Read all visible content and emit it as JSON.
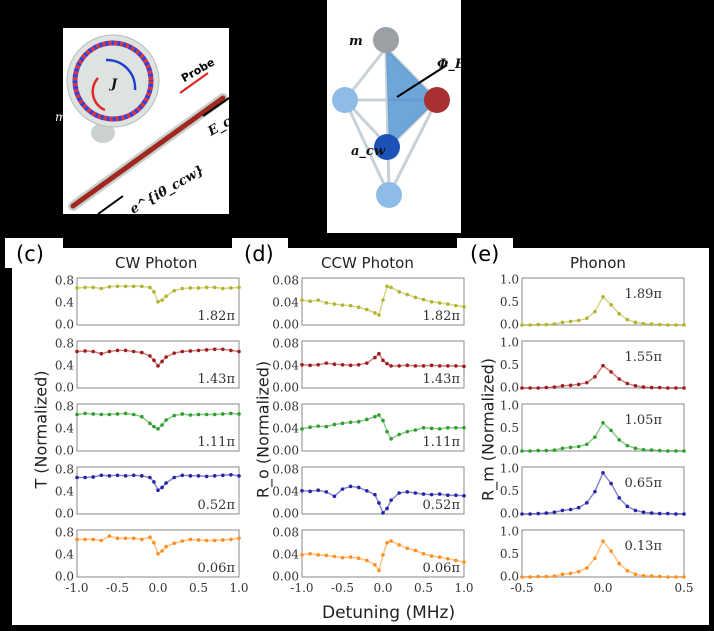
{
  "diagram_a": {
    "probe_label": "Probe",
    "j_label": "J",
    "ecw_label": "E_cw",
    "phase_label": "e^{iθ_ccw}",
    "partial_label": "m"
  },
  "diagram_b": {
    "m_label": "m",
    "phi_label": "Φ_B",
    "acw_label": "a_cw",
    "partial_label": "m"
  },
  "colors": {
    "yellow": "#b3b32c",
    "red": "#a01c1c",
    "green": "#2e9e2e",
    "blue": "#2424a6",
    "orange": "#ff8f1f"
  },
  "chart_data": [
    {
      "type": "line",
      "panel_label": "(c)",
      "title": "CW Photon",
      "ylabel": "T (Normalized)",
      "xlabel": "",
      "xlim": [
        -1.0,
        1.0
      ],
      "ylim": [
        0.0,
        0.85
      ],
      "xticks": [
        "-1.0",
        "-0.5",
        "0.0",
        "0.5",
        "1.0"
      ],
      "yticks": [
        "0.0",
        "0.4",
        "0.8"
      ],
      "x": [
        -1,
        -0.9,
        -0.8,
        -0.7,
        -0.6,
        -0.5,
        -0.4,
        -0.3,
        -0.2,
        -0.1,
        -0.05,
        0,
        0.05,
        0.1,
        0.2,
        0.3,
        0.4,
        0.5,
        0.6,
        0.7,
        0.8,
        0.9,
        1
      ],
      "series": [
        {
          "annotation": "1.82π",
          "color": "yellow",
          "values": [
            0.67,
            0.68,
            0.68,
            0.66,
            0.69,
            0.7,
            0.7,
            0.7,
            0.7,
            0.68,
            0.6,
            0.42,
            0.45,
            0.52,
            0.62,
            0.66,
            0.67,
            0.67,
            0.68,
            0.68,
            0.66,
            0.67,
            0.68
          ]
        },
        {
          "annotation": "1.43π",
          "color": "red",
          "values": [
            0.66,
            0.67,
            0.66,
            0.62,
            0.66,
            0.68,
            0.68,
            0.66,
            0.64,
            0.58,
            0.5,
            0.4,
            0.48,
            0.56,
            0.63,
            0.66,
            0.67,
            0.68,
            0.69,
            0.7,
            0.7,
            0.68,
            0.66
          ]
        },
        {
          "annotation": "1.11π",
          "color": "green",
          "values": [
            0.66,
            0.68,
            0.67,
            0.66,
            0.66,
            0.67,
            0.68,
            0.66,
            0.62,
            0.5,
            0.44,
            0.4,
            0.47,
            0.56,
            0.64,
            0.67,
            0.65,
            0.66,
            0.66,
            0.66,
            0.67,
            0.68,
            0.67
          ]
        },
        {
          "annotation": "0.52π",
          "color": "blue",
          "values": [
            0.66,
            0.66,
            0.67,
            0.7,
            0.69,
            0.7,
            0.69,
            0.7,
            0.69,
            0.66,
            0.58,
            0.43,
            0.48,
            0.56,
            0.66,
            0.7,
            0.69,
            0.69,
            0.68,
            0.69,
            0.7,
            0.71,
            0.69
          ]
        },
        {
          "annotation": "0.06π",
          "color": "orange",
          "values": [
            0.68,
            0.68,
            0.68,
            0.66,
            0.74,
            0.7,
            0.7,
            0.7,
            0.68,
            0.72,
            0.62,
            0.42,
            0.47,
            0.55,
            0.61,
            0.65,
            0.68,
            0.67,
            0.66,
            0.66,
            0.67,
            0.68,
            0.7
          ]
        }
      ]
    },
    {
      "type": "line",
      "panel_label": "(d)",
      "title": "CCW Photon",
      "ylabel": "R_o (Normalized)",
      "xlabel": "Detuning (MHz)",
      "xlim": [
        -1.0,
        1.0
      ],
      "ylim": [
        0.0,
        0.085
      ],
      "xticks": [
        "-1.0",
        "-0.5",
        "0.0",
        "0.5",
        "1.0"
      ],
      "yticks": [
        "0.00",
        "0.04",
        "0.08"
      ],
      "x": [
        -1,
        -0.9,
        -0.8,
        -0.7,
        -0.6,
        -0.5,
        -0.4,
        -0.3,
        -0.2,
        -0.1,
        -0.05,
        0,
        0.05,
        0.1,
        0.2,
        0.3,
        0.4,
        0.5,
        0.6,
        0.7,
        0.8,
        0.9,
        1
      ],
      "series": [
        {
          "annotation": "1.82π",
          "color": "yellow",
          "values": [
            0.045,
            0.043,
            0.045,
            0.04,
            0.038,
            0.036,
            0.035,
            0.032,
            0.028,
            0.022,
            0.018,
            0.045,
            0.07,
            0.068,
            0.06,
            0.055,
            0.05,
            0.046,
            0.042,
            0.04,
            0.038,
            0.035,
            0.033
          ]
        },
        {
          "annotation": "1.43π",
          "color": "red",
          "values": [
            0.042,
            0.041,
            0.042,
            0.045,
            0.043,
            0.042,
            0.041,
            0.042,
            0.045,
            0.055,
            0.062,
            0.05,
            0.044,
            0.04,
            0.04,
            0.041,
            0.04,
            0.04,
            0.041,
            0.04,
            0.04,
            0.04,
            0.039
          ]
        },
        {
          "annotation": "1.11π",
          "color": "green",
          "values": [
            0.04,
            0.043,
            0.045,
            0.044,
            0.048,
            0.05,
            0.052,
            0.053,
            0.057,
            0.062,
            0.065,
            0.055,
            0.035,
            0.022,
            0.03,
            0.035,
            0.038,
            0.042,
            0.041,
            0.04,
            0.042,
            0.042,
            0.042
          ]
        },
        {
          "annotation": "0.52π",
          "color": "blue",
          "values": [
            0.042,
            0.041,
            0.043,
            0.04,
            0.032,
            0.045,
            0.05,
            0.048,
            0.042,
            0.035,
            0.02,
            0.002,
            0.01,
            0.025,
            0.038,
            0.04,
            0.038,
            0.036,
            0.035,
            0.036,
            0.034,
            0.034,
            0.033
          ]
        },
        {
          "annotation": "0.06π",
          "color": "orange",
          "values": [
            0.04,
            0.042,
            0.04,
            0.039,
            0.037,
            0.035,
            0.036,
            0.034,
            0.03,
            0.022,
            0.012,
            0.04,
            0.062,
            0.065,
            0.058,
            0.052,
            0.048,
            0.042,
            0.038,
            0.036,
            0.033,
            0.03,
            0.027
          ]
        }
      ]
    },
    {
      "type": "line",
      "panel_label": "(e)",
      "title": "Phonon",
      "ylabel": "R_m (Normalized)",
      "xlabel": "",
      "xlim": [
        -0.5,
        0.5
      ],
      "ylim": [
        0.0,
        1.05
      ],
      "xticks": [
        "-0.5",
        "0.0",
        "0.5"
      ],
      "yticks": [
        "0.0",
        "0.5",
        "1.0"
      ],
      "x": [
        -0.5,
        -0.45,
        -0.4,
        -0.35,
        -0.3,
        -0.25,
        -0.2,
        -0.15,
        -0.1,
        -0.05,
        0,
        0.05,
        0.1,
        0.15,
        0.2,
        0.25,
        0.3,
        0.35,
        0.4,
        0.45,
        0.5
      ],
      "series": [
        {
          "annotation": "1.89π",
          "color": "yellow",
          "values": [
            0,
            0,
            0.01,
            0.01,
            0.02,
            0.06,
            0.08,
            0.1,
            0.15,
            0.3,
            0.63,
            0.45,
            0.25,
            0.12,
            0.06,
            0.03,
            0.02,
            0.01,
            0,
            0,
            0
          ]
        },
        {
          "annotation": "1.55π",
          "color": "red",
          "values": [
            0,
            0,
            0,
            0.01,
            0.02,
            0.05,
            0.06,
            0.08,
            0.12,
            0.25,
            0.5,
            0.36,
            0.2,
            0.1,
            0.05,
            0.02,
            0.01,
            0.01,
            0,
            0,
            0
          ]
        },
        {
          "annotation": "1.05π",
          "color": "green",
          "values": [
            0,
            0,
            0.01,
            0.01,
            0.02,
            0.06,
            0.08,
            0.1,
            0.15,
            0.31,
            0.63,
            0.46,
            0.25,
            0.12,
            0.06,
            0.03,
            0.02,
            0.01,
            0,
            0,
            0
          ]
        },
        {
          "annotation": "0.65π",
          "color": "blue",
          "values": [
            0,
            0,
            0.01,
            0.02,
            0.04,
            0.08,
            0.1,
            0.14,
            0.25,
            0.5,
            0.92,
            0.68,
            0.36,
            0.17,
            0.08,
            0.04,
            0.02,
            0.01,
            0.01,
            0,
            0
          ]
        },
        {
          "annotation": "0.13π",
          "color": "orange",
          "values": [
            0,
            0,
            0.01,
            0.01,
            0.02,
            0.06,
            0.08,
            0.12,
            0.2,
            0.42,
            0.8,
            0.58,
            0.3,
            0.14,
            0.06,
            0.03,
            0.02,
            0.01,
            0,
            0,
            0
          ]
        }
      ]
    }
  ]
}
